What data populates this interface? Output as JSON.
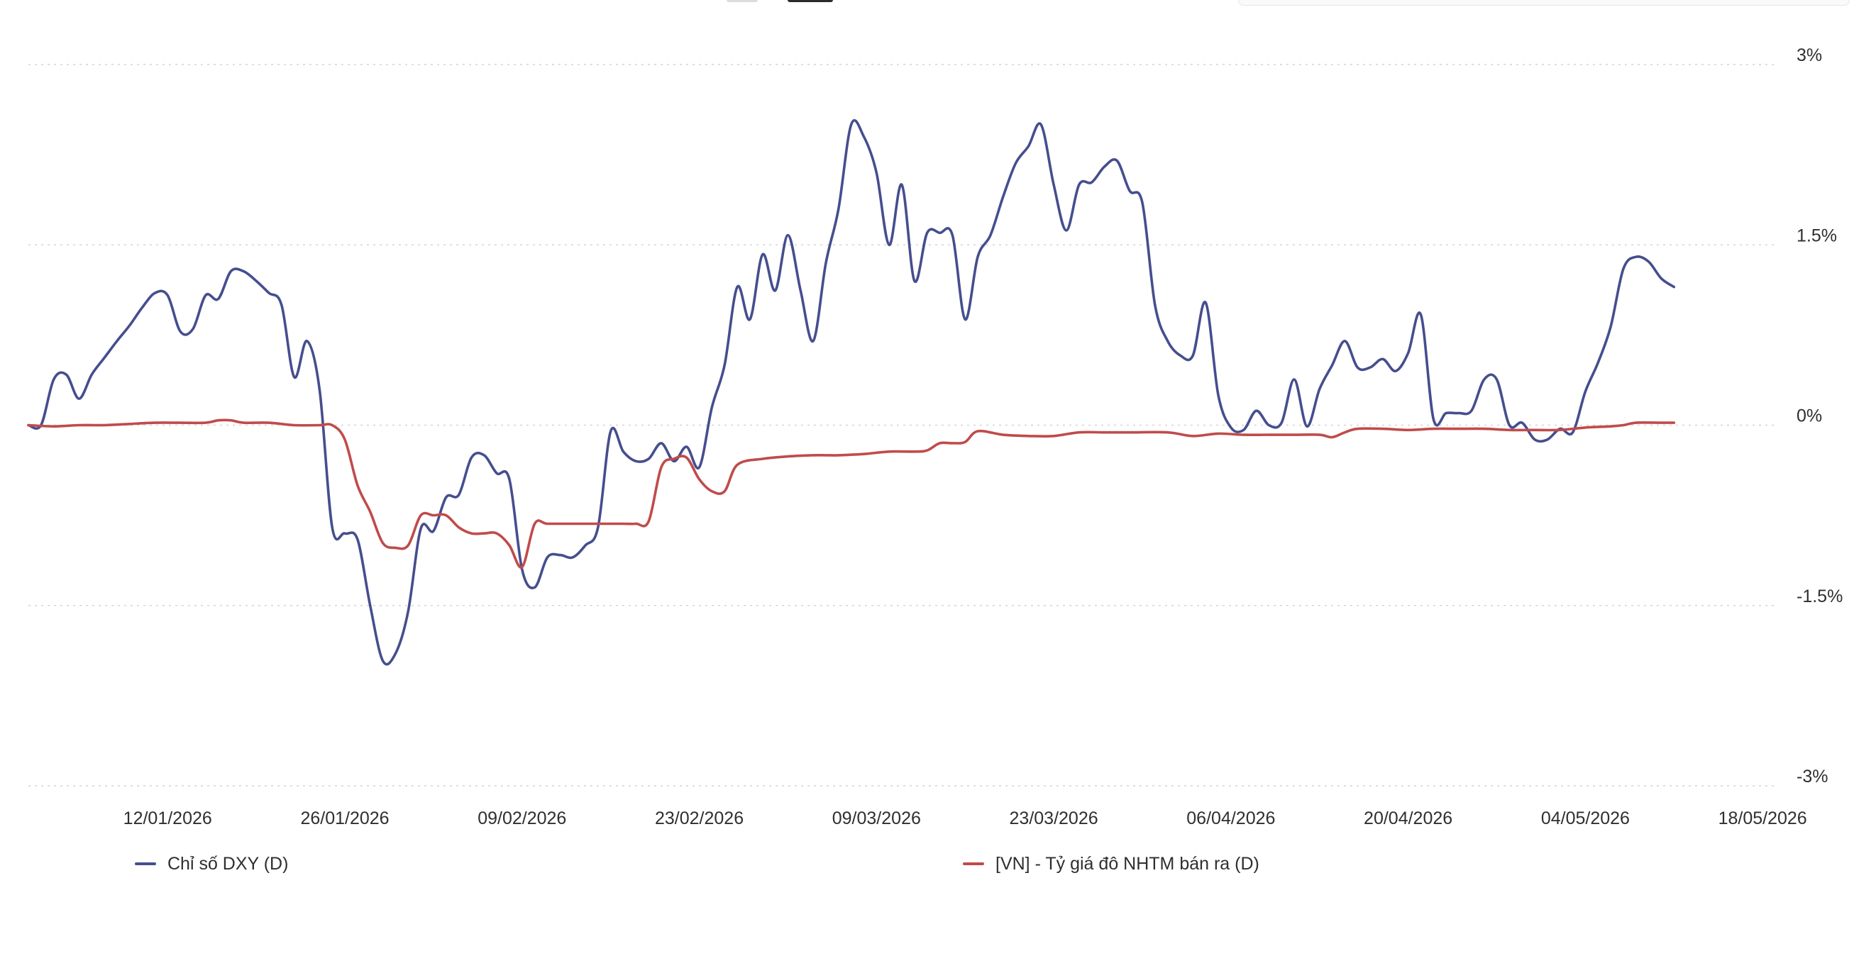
{
  "chart_data": {
    "type": "line",
    "title": "",
    "xlabel": "",
    "ylabel": "",
    "y_unit": "%",
    "ylim": [
      -3,
      3
    ],
    "y_ticks": [
      3,
      1.5,
      0,
      -1.5,
      -3
    ],
    "y_tick_labels": [
      "3%",
      "1.5%",
      "0%",
      "-1.5%",
      "-3%"
    ],
    "x_range": [
      "2026-01-01",
      "2026-05-19"
    ],
    "x_ticks": [
      "2026-01-12",
      "2026-01-26",
      "2026-02-09",
      "2026-02-23",
      "2026-03-09",
      "2026-03-23",
      "2026-04-06",
      "2026-04-20",
      "2026-05-04",
      "2026-05-18"
    ],
    "x_tick_labels": [
      "12/01/2026",
      "26/01/2026",
      "09/02/2026",
      "23/02/2026",
      "09/03/2026",
      "23/03/2026",
      "06/04/2026",
      "20/04/2026",
      "04/05/2026",
      "18/05/2026"
    ],
    "grid": true,
    "legend_position": "bottom",
    "series": [
      {
        "name": "Chỉ số DXY (D)",
        "color": "#454e8e",
        "points": [
          [
            "2026-01-01",
            0.0
          ],
          [
            "2026-01-02",
            0.0
          ],
          [
            "2026-01-03",
            0.38
          ],
          [
            "2026-01-04",
            0.42
          ],
          [
            "2026-01-05",
            0.22
          ],
          [
            "2026-01-06",
            0.42
          ],
          [
            "2026-01-07",
            0.56
          ],
          [
            "2026-01-08",
            0.7
          ],
          [
            "2026-01-09",
            0.83
          ],
          [
            "2026-01-10",
            0.98
          ],
          [
            "2026-01-11",
            1.1
          ],
          [
            "2026-01-12",
            1.08
          ],
          [
            "2026-01-13",
            0.78
          ],
          [
            "2026-01-14",
            0.8
          ],
          [
            "2026-01-15",
            1.08
          ],
          [
            "2026-01-16",
            1.05
          ],
          [
            "2026-01-17",
            1.28
          ],
          [
            "2026-01-18",
            1.28
          ],
          [
            "2026-01-19",
            1.2
          ],
          [
            "2026-01-20",
            1.1
          ],
          [
            "2026-01-21",
            1.0
          ],
          [
            "2026-01-22",
            0.4
          ],
          [
            "2026-01-23",
            0.7
          ],
          [
            "2026-01-24",
            0.3
          ],
          [
            "2026-01-25",
            -0.85
          ],
          [
            "2026-01-26",
            -0.9
          ],
          [
            "2026-01-27",
            -0.95
          ],
          [
            "2026-01-28",
            -1.5
          ],
          [
            "2026-01-29",
            -1.96
          ],
          [
            "2026-01-30",
            -1.9
          ],
          [
            "2026-01-31",
            -1.55
          ],
          [
            "2026-02-01",
            -0.86
          ],
          [
            "2026-02-02",
            -0.88
          ],
          [
            "2026-02-03",
            -0.6
          ],
          [
            "2026-02-04",
            -0.58
          ],
          [
            "2026-02-05",
            -0.27
          ],
          [
            "2026-02-06",
            -0.25
          ],
          [
            "2026-02-07",
            -0.4
          ],
          [
            "2026-02-08",
            -0.45
          ],
          [
            "2026-02-09",
            -1.2
          ],
          [
            "2026-02-10",
            -1.35
          ],
          [
            "2026-02-11",
            -1.1
          ],
          [
            "2026-02-12",
            -1.08
          ],
          [
            "2026-02-13",
            -1.1
          ],
          [
            "2026-02-14",
            -1.0
          ],
          [
            "2026-02-15",
            -0.85
          ],
          [
            "2026-02-16",
            -0.05
          ],
          [
            "2026-02-17",
            -0.22
          ],
          [
            "2026-02-18",
            -0.3
          ],
          [
            "2026-02-19",
            -0.28
          ],
          [
            "2026-02-20",
            -0.15
          ],
          [
            "2026-02-21",
            -0.3
          ],
          [
            "2026-02-22",
            -0.18
          ],
          [
            "2026-02-23",
            -0.35
          ],
          [
            "2026-02-24",
            0.15
          ],
          [
            "2026-02-25",
            0.5
          ],
          [
            "2026-02-26",
            1.15
          ],
          [
            "2026-02-27",
            0.88
          ],
          [
            "2026-02-28",
            1.42
          ],
          [
            "2026-03-01",
            1.12
          ],
          [
            "2026-03-02",
            1.58
          ],
          [
            "2026-03-03",
            1.12
          ],
          [
            "2026-03-04",
            0.7
          ],
          [
            "2026-03-05",
            1.35
          ],
          [
            "2026-03-06",
            1.8
          ],
          [
            "2026-03-07",
            2.5
          ],
          [
            "2026-03-08",
            2.4
          ],
          [
            "2026-03-09",
            2.1
          ],
          [
            "2026-03-10",
            1.5
          ],
          [
            "2026-03-11",
            2.0
          ],
          [
            "2026-03-12",
            1.2
          ],
          [
            "2026-03-13",
            1.6
          ],
          [
            "2026-03-14",
            1.6
          ],
          [
            "2026-03-15",
            1.58
          ],
          [
            "2026-03-16",
            0.88
          ],
          [
            "2026-03-17",
            1.4
          ],
          [
            "2026-03-18",
            1.58
          ],
          [
            "2026-03-19",
            1.9
          ],
          [
            "2026-03-20",
            2.18
          ],
          [
            "2026-03-21",
            2.32
          ],
          [
            "2026-03-22",
            2.5
          ],
          [
            "2026-03-23",
            2.0
          ],
          [
            "2026-03-24",
            1.62
          ],
          [
            "2026-03-25",
            2.0
          ],
          [
            "2026-03-26",
            2.02
          ],
          [
            "2026-03-27",
            2.15
          ],
          [
            "2026-03-28",
            2.2
          ],
          [
            "2026-03-29",
            1.95
          ],
          [
            "2026-03-30",
            1.85
          ],
          [
            "2026-03-31",
            1.0
          ],
          [
            "2026-04-01",
            0.7
          ],
          [
            "2026-04-02",
            0.58
          ],
          [
            "2026-04-03",
            0.58
          ],
          [
            "2026-04-04",
            1.02
          ],
          [
            "2026-04-05",
            0.25
          ],
          [
            "2026-04-06",
            -0.02
          ],
          [
            "2026-04-07",
            -0.04
          ],
          [
            "2026-04-08",
            0.12
          ],
          [
            "2026-04-09",
            0.0
          ],
          [
            "2026-04-10",
            0.02
          ],
          [
            "2026-04-11",
            0.38
          ],
          [
            "2026-04-12",
            -0.01
          ],
          [
            "2026-04-13",
            0.3
          ],
          [
            "2026-04-14",
            0.5
          ],
          [
            "2026-04-15",
            0.7
          ],
          [
            "2026-04-16",
            0.48
          ],
          [
            "2026-04-17",
            0.48
          ],
          [
            "2026-04-18",
            0.55
          ],
          [
            "2026-04-19",
            0.45
          ],
          [
            "2026-04-20",
            0.6
          ],
          [
            "2026-04-21",
            0.92
          ],
          [
            "2026-04-22",
            0.05
          ],
          [
            "2026-04-23",
            0.1
          ],
          [
            "2026-04-24",
            0.1
          ],
          [
            "2026-04-25",
            0.12
          ],
          [
            "2026-04-26",
            0.38
          ],
          [
            "2026-04-27",
            0.38
          ],
          [
            "2026-04-28",
            0.0
          ],
          [
            "2026-04-29",
            0.02
          ],
          [
            "2026-04-30",
            -0.12
          ],
          [
            "2026-05-01",
            -0.12
          ],
          [
            "2026-05-02",
            -0.03
          ],
          [
            "2026-05-03",
            -0.06
          ],
          [
            "2026-05-04",
            0.28
          ],
          [
            "2026-05-05",
            0.52
          ],
          [
            "2026-05-06",
            0.82
          ],
          [
            "2026-05-07",
            1.3
          ],
          [
            "2026-05-08",
            1.4
          ],
          [
            "2026-05-09",
            1.36
          ],
          [
            "2026-05-10",
            1.22
          ],
          [
            "2026-05-11",
            1.15
          ]
        ]
      },
      {
        "name": "[VN] - Tỷ giá đô NHTM bán ra (D)",
        "color": "#c04b4b",
        "points": [
          [
            "2026-01-01",
            0.0
          ],
          [
            "2026-01-03",
            -0.01
          ],
          [
            "2026-01-05",
            0.0
          ],
          [
            "2026-01-07",
            0.0
          ],
          [
            "2026-01-09",
            0.01
          ],
          [
            "2026-01-11",
            0.02
          ],
          [
            "2026-01-13",
            0.02
          ],
          [
            "2026-01-15",
            0.02
          ],
          [
            "2026-01-16",
            0.04
          ],
          [
            "2026-01-17",
            0.04
          ],
          [
            "2026-01-18",
            0.02
          ],
          [
            "2026-01-20",
            0.02
          ],
          [
            "2026-01-22",
            0.0
          ],
          [
            "2026-01-24",
            0.0
          ],
          [
            "2026-01-25",
            0.0
          ],
          [
            "2026-01-26",
            -0.12
          ],
          [
            "2026-01-27",
            -0.5
          ],
          [
            "2026-01-28",
            -0.72
          ],
          [
            "2026-01-29",
            -0.98
          ],
          [
            "2026-01-30",
            -1.02
          ],
          [
            "2026-01-31",
            -1.0
          ],
          [
            "2026-02-01",
            -0.75
          ],
          [
            "2026-02-02",
            -0.75
          ],
          [
            "2026-02-03",
            -0.75
          ],
          [
            "2026-02-04",
            -0.85
          ],
          [
            "2026-02-05",
            -0.9
          ],
          [
            "2026-02-06",
            -0.9
          ],
          [
            "2026-02-07",
            -0.9
          ],
          [
            "2026-02-08",
            -1.0
          ],
          [
            "2026-02-09",
            -1.18
          ],
          [
            "2026-02-10",
            -0.82
          ],
          [
            "2026-02-11",
            -0.82
          ],
          [
            "2026-02-13",
            -0.82
          ],
          [
            "2026-02-15",
            -0.82
          ],
          [
            "2026-02-17",
            -0.82
          ],
          [
            "2026-02-18",
            -0.82
          ],
          [
            "2026-02-19",
            -0.8
          ],
          [
            "2026-02-20",
            -0.35
          ],
          [
            "2026-02-21",
            -0.28
          ],
          [
            "2026-02-22",
            -0.27
          ],
          [
            "2026-02-23",
            -0.45
          ],
          [
            "2026-02-24",
            -0.55
          ],
          [
            "2026-02-25",
            -0.55
          ],
          [
            "2026-02-26",
            -0.33
          ],
          [
            "2026-02-28",
            -0.28
          ],
          [
            "2026-03-02",
            -0.26
          ],
          [
            "2026-03-04",
            -0.25
          ],
          [
            "2026-03-05",
            -0.25
          ],
          [
            "2026-03-06",
            -0.25
          ],
          [
            "2026-03-08",
            -0.24
          ],
          [
            "2026-03-10",
            -0.22
          ],
          [
            "2026-03-12",
            -0.22
          ],
          [
            "2026-03-13",
            -0.21
          ],
          [
            "2026-03-14",
            -0.15
          ],
          [
            "2026-03-15",
            -0.15
          ],
          [
            "2026-03-16",
            -0.14
          ],
          [
            "2026-03-17",
            -0.05
          ],
          [
            "2026-03-19",
            -0.08
          ],
          [
            "2026-03-21",
            -0.09
          ],
          [
            "2026-03-23",
            -0.09
          ],
          [
            "2026-03-25",
            -0.06
          ],
          [
            "2026-03-27",
            -0.06
          ],
          [
            "2026-03-29",
            -0.06
          ],
          [
            "2026-04-01",
            -0.06
          ],
          [
            "2026-04-03",
            -0.09
          ],
          [
            "2026-04-05",
            -0.07
          ],
          [
            "2026-04-07",
            -0.08
          ],
          [
            "2026-04-09",
            -0.08
          ],
          [
            "2026-04-11",
            -0.08
          ],
          [
            "2026-04-13",
            -0.08
          ],
          [
            "2026-04-14",
            -0.1
          ],
          [
            "2026-04-15",
            -0.06
          ],
          [
            "2026-04-16",
            -0.03
          ],
          [
            "2026-04-18",
            -0.03
          ],
          [
            "2026-04-20",
            -0.04
          ],
          [
            "2026-04-22",
            -0.03
          ],
          [
            "2026-04-24",
            -0.03
          ],
          [
            "2026-04-26",
            -0.03
          ],
          [
            "2026-04-28",
            -0.04
          ],
          [
            "2026-04-30",
            -0.04
          ],
          [
            "2026-05-02",
            -0.04
          ],
          [
            "2026-05-04",
            -0.02
          ],
          [
            "2026-05-06",
            -0.01
          ],
          [
            "2026-05-07",
            0.0
          ],
          [
            "2026-05-08",
            0.02
          ],
          [
            "2026-05-10",
            0.02
          ],
          [
            "2026-05-11",
            0.02
          ]
        ]
      }
    ]
  },
  "legend_items": [
    {
      "label": "Chỉ số DXY (D)",
      "color": "#454e8e"
    },
    {
      "label": "[VN] - Tỷ giá đô NHTM bán ra (D)",
      "color": "#c04b4b"
    }
  ],
  "colors": {
    "grid": "#d4d4d4",
    "text": "#2f2f2f",
    "background": "#ffffff"
  }
}
